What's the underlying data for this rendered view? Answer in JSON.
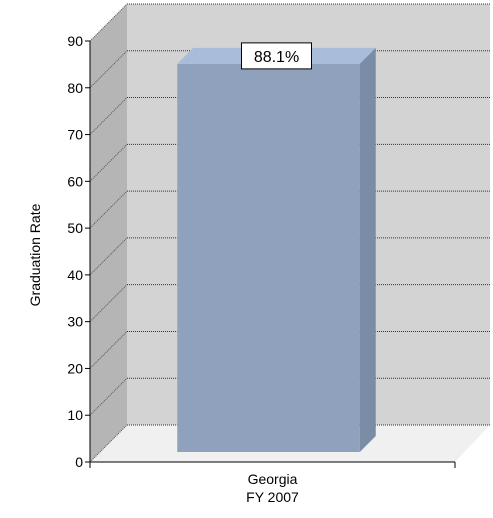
{
  "chart_data": {
    "type": "bar",
    "style": "3d",
    "categories": [
      "Georgia\nFY 2007"
    ],
    "values": [
      88.1
    ],
    "data_labels": [
      "88.1%"
    ],
    "ylabel": "Graduation Rate",
    "ylim": [
      0,
      90
    ],
    "yticks": [
      0,
      10,
      20,
      30,
      40,
      50,
      60,
      70,
      80,
      90
    ],
    "grid": true,
    "colors": {
      "bar_front": "#8fa1bd",
      "bar_side": "#7a8ca6",
      "bar_top": "#a9bcd9",
      "back_wall": "#d3d3d3",
      "side_wall": "#b5b5b5",
      "floor": "#f0f0f0"
    }
  }
}
